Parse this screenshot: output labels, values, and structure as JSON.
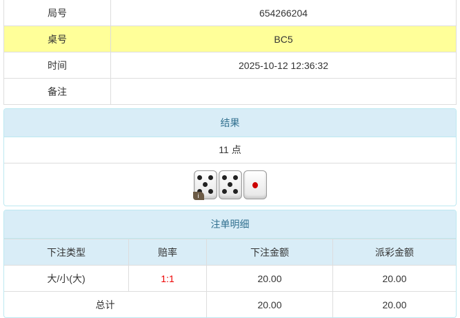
{
  "info": [
    {
      "label": "局号",
      "value": "654266204"
    },
    {
      "label": "桌号",
      "value": "BC5"
    },
    {
      "label": "时间",
      "value": "2025-10-12 12:36:32"
    },
    {
      "label": "备注",
      "value": ""
    }
  ],
  "result": {
    "title": "结果",
    "points": "11 点",
    "dice": [
      5,
      5,
      1
    ]
  },
  "bets": {
    "title": "注单明细",
    "headers": [
      "下注类型",
      "赔率",
      "下注金额",
      "派彩金额"
    ],
    "rows": [
      {
        "type": "大/小(大)",
        "odds": "1:1",
        "amount": "20.00",
        "payout": "20.00"
      }
    ],
    "total": {
      "label": "总计",
      "amount": "20.00",
      "payout": "20.00"
    }
  },
  "colors": {
    "highlight": "#ffff99",
    "panel_header": "#d9edf7",
    "odds": "#e00000"
  }
}
